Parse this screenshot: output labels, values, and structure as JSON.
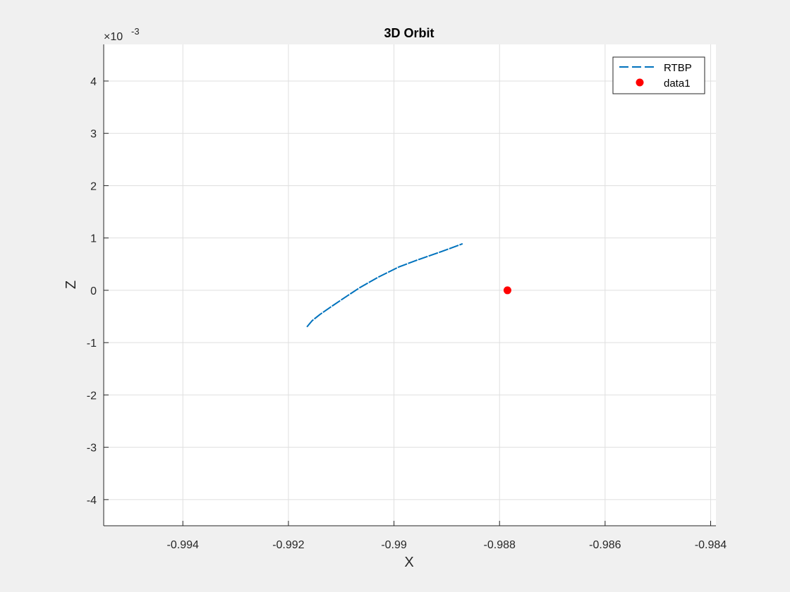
{
  "figure": {
    "background": "#f0f0f0"
  },
  "chart_data": {
    "type": "line",
    "title": "3D Orbit",
    "xlabel": "X",
    "ylabel": "Z",
    "xlim": [
      -0.9955,
      -0.9839
    ],
    "ylim": [
      -4.5,
      4.7
    ],
    "y_exponent_label": "×10",
    "y_exponent_power": "-3",
    "xticks": [
      -0.994,
      -0.992,
      -0.99,
      -0.988,
      -0.986,
      -0.984
    ],
    "xtick_labels": [
      "-0.994",
      "-0.992",
      "-0.99",
      "-0.988",
      "-0.986",
      "-0.984"
    ],
    "yticks": [
      -4,
      -3,
      -2,
      -1,
      0,
      1,
      2,
      3,
      4
    ],
    "ytick_labels": [
      "-4",
      "-3",
      "-2",
      "-1",
      "0",
      "1",
      "2",
      "3",
      "4"
    ],
    "grid": true,
    "legend_position": "top-right",
    "series": [
      {
        "name": "RTBP",
        "style": "dashed-line",
        "color": "#0072bd",
        "x": [
          -0.99165,
          -0.99155,
          -0.9914,
          -0.9912,
          -0.99095,
          -0.99065,
          -0.9903,
          -0.9899,
          -0.9895,
          -0.9891,
          -0.9887
        ],
        "y": [
          -0.7,
          -0.58,
          -0.46,
          -0.32,
          -0.15,
          0.05,
          0.25,
          0.45,
          0.6,
          0.74,
          0.89
        ]
      },
      {
        "name": "data1",
        "style": "marker",
        "color": "#ff0000",
        "x": [
          -0.98785
        ],
        "y": [
          0.0
        ]
      }
    ]
  }
}
